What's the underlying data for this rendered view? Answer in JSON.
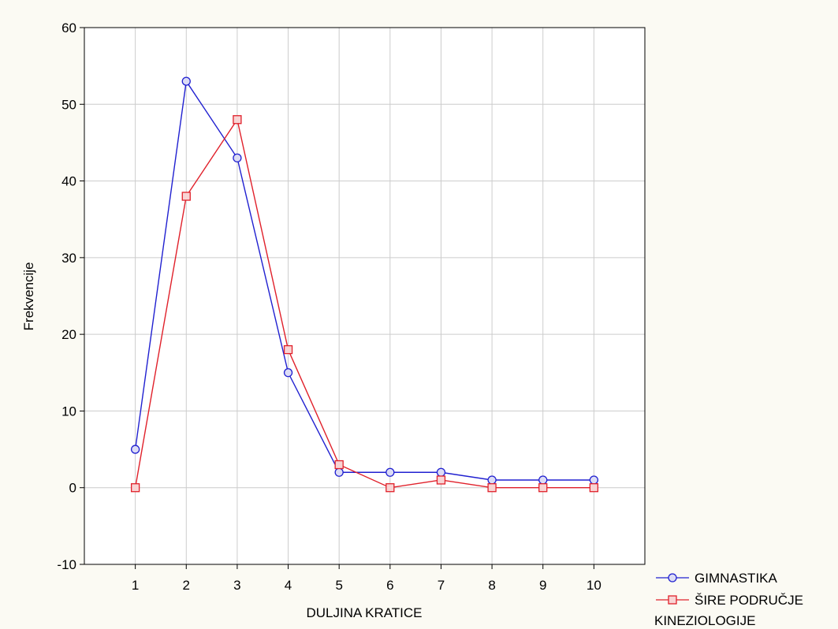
{
  "chart_data": {
    "type": "line",
    "x": [
      1,
      2,
      3,
      4,
      5,
      6,
      7,
      8,
      9,
      10
    ],
    "x_tick_labels": [
      "1",
      "2",
      "3",
      "4",
      "5",
      "6",
      "7",
      "8",
      "9",
      "10"
    ],
    "y_tick_labels": [
      "60",
      "50",
      "40",
      "30",
      "20",
      "10",
      "0",
      "-10"
    ],
    "series": [
      {
        "name": "GIMNASTIKA",
        "values": [
          5,
          53,
          43,
          15,
          2,
          2,
          2,
          1,
          1,
          1
        ],
        "color": "#2020d0",
        "marker": "circle"
      },
      {
        "name": "ŠIRE PODRUČJE KINEZIOLOGIJE",
        "name_line1": "ŠIRE PODRUČJE",
        "name_line2": "KINEZIOLOGIJE",
        "values": [
          0,
          38,
          48,
          18,
          3,
          0,
          1,
          0,
          0,
          0
        ],
        "color": "#e0202a",
        "marker": "square"
      }
    ],
    "title": "",
    "xlabel": "DULJINA KRATICE",
    "ylabel": "Frekvencije",
    "xlim": [
      0,
      11
    ],
    "ylim": [
      -10,
      60
    ],
    "grid": true,
    "legend_position": "bottom-right"
  }
}
